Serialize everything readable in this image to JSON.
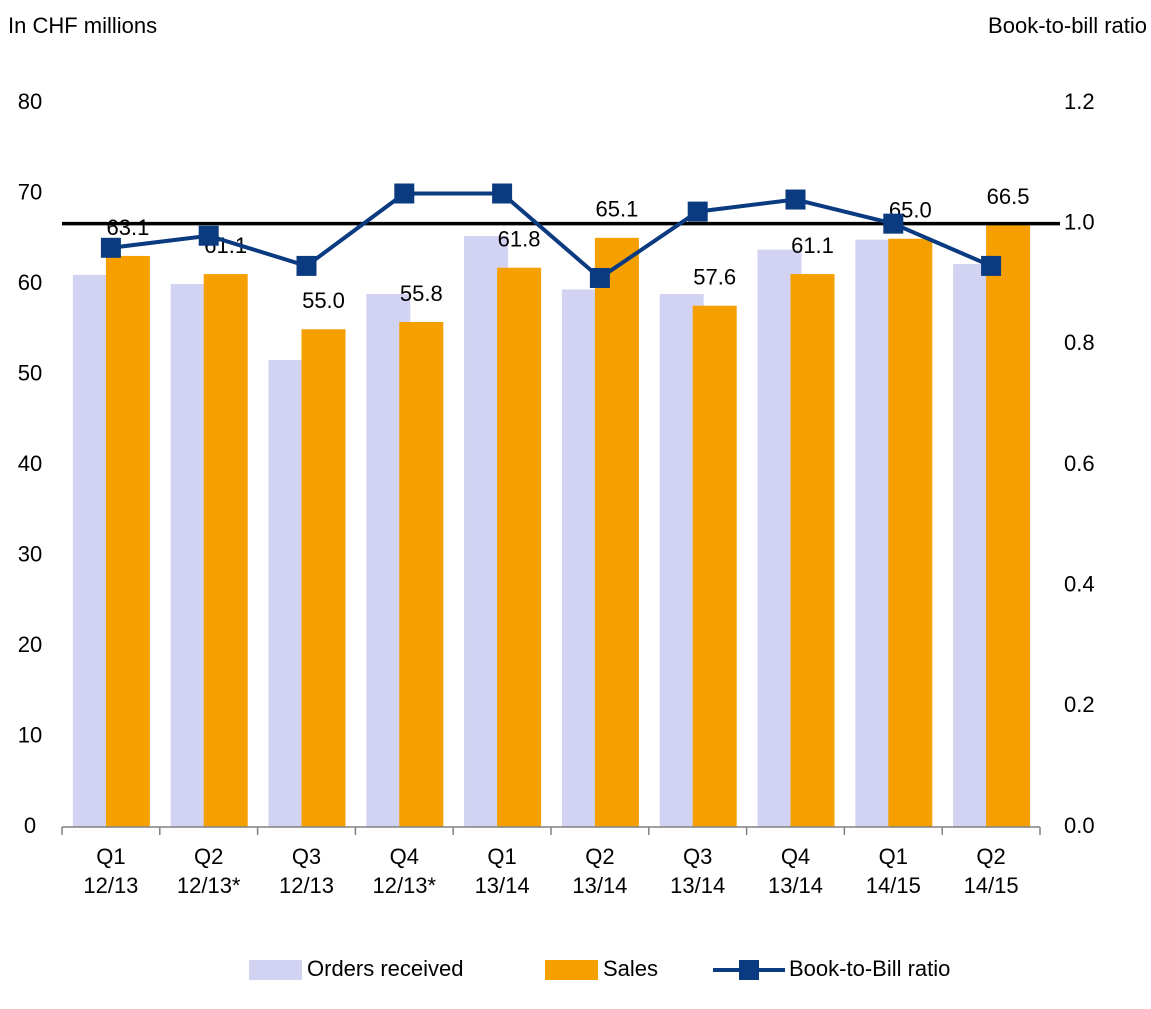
{
  "chart_data": {
    "type": "bar_line",
    "y_axis_label": "In CHF millions",
    "y2_axis_label": "Book-to-bill ratio",
    "categories": [
      "Q1 12/13",
      "Q2 12/13*",
      "Q3 12/13",
      "Q4 12/13*",
      "Q1 13/14",
      "Q2 13/14",
      "Q3 13/14",
      "Q4 13/14",
      "Q1 14/15",
      "Q2 14/15"
    ],
    "series": [
      {
        "name": "Orders received",
        "color": "#d2d2f2",
        "type": "bar",
        "values": [
          61.0,
          60.0,
          51.6,
          58.9,
          65.3,
          59.4,
          58.9,
          63.8,
          64.9,
          62.2
        ]
      },
      {
        "name": "Sales",
        "color": "#f5a000",
        "type": "bar",
        "values": [
          63.1,
          61.1,
          55.0,
          55.8,
          61.8,
          65.1,
          57.6,
          61.1,
          65.0,
          66.5
        ],
        "value_labels": [
          "63.1",
          "61.1",
          "55.0",
          "55.8",
          "61.8",
          "65.1",
          "57.6",
          "61.1",
          "65.0",
          "66.5"
        ]
      },
      {
        "name": "Book-to-Bill ratio",
        "color": "#0a3a80",
        "type": "line",
        "axis": "y2",
        "values": [
          0.96,
          0.98,
          0.93,
          1.05,
          1.05,
          0.91,
          1.02,
          1.04,
          1.0,
          0.93
        ]
      }
    ],
    "ylim": [
      0,
      80
    ],
    "yticks": [
      0,
      10,
      20,
      30,
      40,
      50,
      60,
      70,
      80
    ],
    "y2lim": [
      0,
      1.2
    ],
    "y2ticks": [
      {
        "value": 0,
        "label": "0.0"
      },
      0.2,
      0.4,
      0.6,
      0.8,
      {
        "value": 1,
        "label": "1.0"
      },
      1.2
    ],
    "reference_line": {
      "axis": "y2",
      "value": 1.0,
      "color": "#000000"
    },
    "legend": "bottom"
  }
}
